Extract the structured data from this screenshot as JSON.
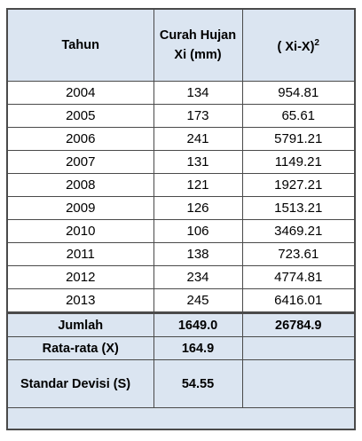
{
  "table": {
    "header": {
      "year": "Tahun",
      "rainfall": [
        "Curah Hujan",
        "Xi (mm)"
      ],
      "deviation": {
        "text": "( Xi-X)",
        "sup": "2"
      }
    },
    "rows": [
      [
        "2004",
        "134",
        "954.81"
      ],
      [
        "2005",
        "173",
        "65.61"
      ],
      [
        "2006",
        "241",
        "5791.21"
      ],
      [
        "2007",
        "131",
        "1149.21"
      ],
      [
        "2008",
        "121",
        "1927.21"
      ],
      [
        "2009",
        "126",
        "1513.21"
      ],
      [
        "2010",
        "106",
        "3469.21"
      ],
      [
        "2011",
        "138",
        "723.61"
      ],
      [
        "2012",
        "234",
        "4774.81"
      ],
      [
        "2013",
        "245",
        "6416.01"
      ]
    ],
    "summary": [
      {
        "label": "Jumlah",
        "values": [
          "1649.0",
          "26784.9"
        ]
      },
      {
        "label": "Rata-rata (X)",
        "values": [
          "164.9"
        ]
      },
      {
        "label": "Standar Devisi (S)",
        "values": [
          "54.55"
        ]
      }
    ]
  }
}
